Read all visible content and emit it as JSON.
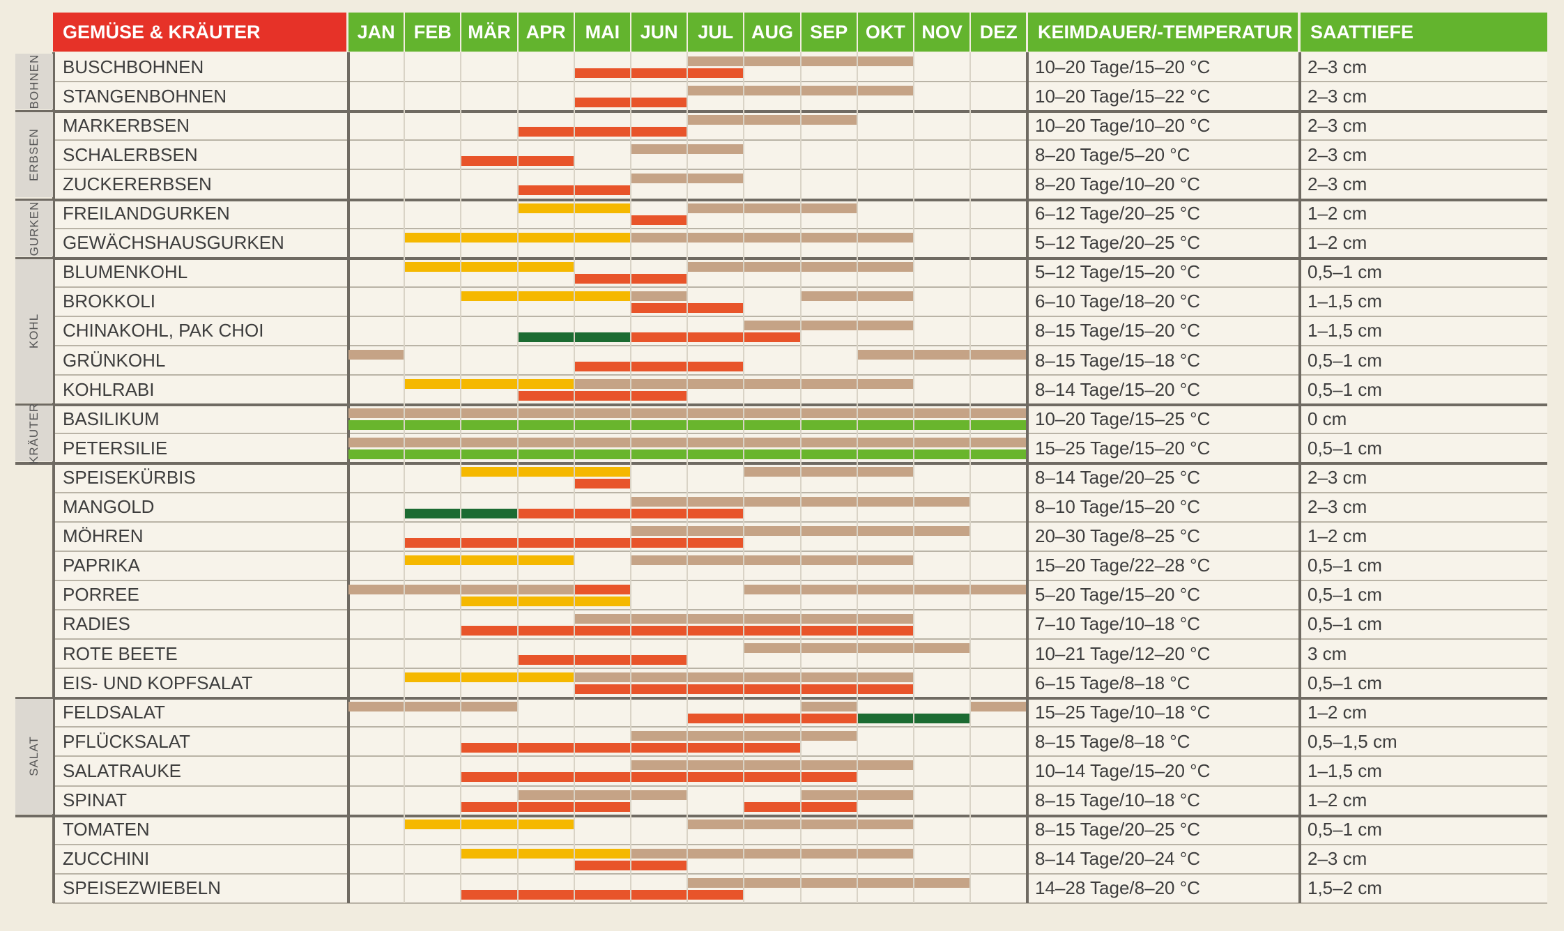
{
  "header": {
    "title": "GEMÜSE & KRÄUTER",
    "months": [
      "JAN",
      "FEB",
      "MÄR",
      "APR",
      "MAI",
      "JUN",
      "JUL",
      "AUG",
      "SEP",
      "OKT",
      "NOV",
      "DEZ"
    ],
    "germination": "KEIMDAUER/-TEMPERATUR",
    "depth": "SAATTIEFE"
  },
  "colors": {
    "header_red": "#e63228",
    "header_green": "#63b42e",
    "red": "#e8542a",
    "tan": "#c5a386",
    "yellow": "#f5b800",
    "dark_green": "#1c6b32",
    "light_green": "#69b52d",
    "group_bg": "#dcd8d1"
  },
  "groups": [
    {
      "label": "BOHNEN",
      "start": 0,
      "end": 1
    },
    {
      "label": "ERBSEN",
      "start": 2,
      "end": 4
    },
    {
      "label": "GURKEN",
      "start": 5,
      "end": 6
    },
    {
      "label": "KOHL",
      "start": 7,
      "end": 11
    },
    {
      "label": "KRÄUTER",
      "start": 12,
      "end": 13
    },
    {
      "label": "",
      "start": 14,
      "end": 21
    },
    {
      "label": "SALAT",
      "start": 22,
      "end": 25
    },
    {
      "label": "",
      "start": 26,
      "end": 29
    }
  ],
  "rows": [
    {
      "name": "BUSCHBOHNEN",
      "germ": "10–20 Tage/15–20 °C",
      "depth": "2–3 cm",
      "bars": [
        {
          "c": "tan",
          "s": 6.0,
          "e": 10.0,
          "h": "top"
        },
        {
          "c": "red",
          "s": 4.0,
          "e": 7.0,
          "h": "bot"
        }
      ]
    },
    {
      "name": "STANGENBOHNEN",
      "germ": "10–20 Tage/15–22 °C",
      "depth": "2–3 cm",
      "bars": [
        {
          "c": "tan",
          "s": 6.0,
          "e": 10.0,
          "h": "top"
        },
        {
          "c": "red",
          "s": 4.0,
          "e": 6.0,
          "h": "bot"
        }
      ]
    },
    {
      "name": "MARKERBSEN",
      "germ": "10–20 Tage/10–20 °C",
      "depth": "2–3 cm",
      "bars": [
        {
          "c": "tan",
          "s": 6.0,
          "e": 9.0,
          "h": "top"
        },
        {
          "c": "red",
          "s": 3.0,
          "e": 6.0,
          "h": "bot"
        }
      ]
    },
    {
      "name": "SCHALERBSEN",
      "germ": "8–20 Tage/5–20 °C",
      "depth": "2–3 cm",
      "bars": [
        {
          "c": "tan",
          "s": 5.0,
          "e": 7.0,
          "h": "top"
        },
        {
          "c": "red",
          "s": 2.0,
          "e": 4.0,
          "h": "bot"
        }
      ]
    },
    {
      "name": "ZUCKERERBSEN",
      "germ": "8–20 Tage/10–20 °C",
      "depth": "2–3 cm",
      "bars": [
        {
          "c": "tan",
          "s": 5.0,
          "e": 7.0,
          "h": "top"
        },
        {
          "c": "red",
          "s": 3.0,
          "e": 5.0,
          "h": "bot"
        }
      ]
    },
    {
      "name": "FREILANDGURKEN",
      "germ": "6–12 Tage/20–25 °C",
      "depth": "1–2 cm",
      "bars": [
        {
          "c": "yellow",
          "s": 3.0,
          "e": 5.0,
          "h": "top"
        },
        {
          "c": "tan",
          "s": 6.0,
          "e": 9.0,
          "h": "top"
        },
        {
          "c": "red",
          "s": 5.0,
          "e": 6.0,
          "h": "bot"
        }
      ]
    },
    {
      "name": "GEWÄCHSHAUSGURKEN",
      "germ": "5–12 Tage/20–25 °C",
      "depth": "1–2 cm",
      "bars": [
        {
          "c": "yellow",
          "s": 1.0,
          "e": 5.0,
          "h": "top"
        },
        {
          "c": "tan",
          "s": 5.0,
          "e": 10.0,
          "h": "top"
        }
      ]
    },
    {
      "name": "BLUMENKOHL",
      "germ": "5–12 Tage/15–20 °C",
      "depth": "0,5–1 cm",
      "bars": [
        {
          "c": "yellow",
          "s": 1.0,
          "e": 4.0,
          "h": "top"
        },
        {
          "c": "tan",
          "s": 6.0,
          "e": 10.0,
          "h": "top"
        },
        {
          "c": "red",
          "s": 4.0,
          "e": 6.0,
          "h": "bot"
        }
      ]
    },
    {
      "name": "BROKKOLI",
      "germ": "6–10 Tage/18–20 °C",
      "depth": "1–1,5 cm",
      "bars": [
        {
          "c": "yellow",
          "s": 2.0,
          "e": 5.0,
          "h": "top"
        },
        {
          "c": "tan",
          "s": 5.0,
          "e": 6.0,
          "h": "top"
        },
        {
          "c": "tan",
          "s": 8.0,
          "e": 10.0,
          "h": "top"
        },
        {
          "c": "red",
          "s": 5.0,
          "e": 7.0,
          "h": "bot"
        }
      ]
    },
    {
      "name": "CHINAKOHL, PAK CHOI",
      "germ": "8–15 Tage/15–20 °C",
      "depth": "1–1,5 cm",
      "bars": [
        {
          "c": "tan",
          "s": 7.0,
          "e": 10.0,
          "h": "top"
        },
        {
          "c": "dark_green",
          "s": 3.0,
          "e": 5.0,
          "h": "bot"
        },
        {
          "c": "red",
          "s": 5.0,
          "e": 8.0,
          "h": "bot"
        }
      ]
    },
    {
      "name": "GRÜNKOHL",
      "germ": "8–15 Tage/15–18 °C",
      "depth": "0,5–1 cm",
      "bars": [
        {
          "c": "tan",
          "s": 0.0,
          "e": 1.0,
          "h": "top"
        },
        {
          "c": "tan",
          "s": 9.0,
          "e": 12.0,
          "h": "top"
        },
        {
          "c": "red",
          "s": 4.0,
          "e": 7.0,
          "h": "bot"
        }
      ]
    },
    {
      "name": "KOHLRABI",
      "germ": "8–14 Tage/15–20 °C",
      "depth": "0,5–1 cm",
      "bars": [
        {
          "c": "yellow",
          "s": 1.0,
          "e": 4.0,
          "h": "top"
        },
        {
          "c": "tan",
          "s": 4.0,
          "e": 10.0,
          "h": "top"
        },
        {
          "c": "red",
          "s": 3.0,
          "e": 6.0,
          "h": "bot"
        }
      ]
    },
    {
      "name": "BASILIKUM",
      "germ": "10–20 Tage/15–25 °C",
      "depth": "0 cm",
      "bars": [
        {
          "c": "tan",
          "s": 0.0,
          "e": 12.0,
          "h": "top"
        },
        {
          "c": "light_green",
          "s": 0.0,
          "e": 12.0,
          "h": "bot"
        }
      ]
    },
    {
      "name": "PETERSILIE",
      "germ": "15–25 Tage/15–20 °C",
      "depth": "0,5–1 cm",
      "bars": [
        {
          "c": "tan",
          "s": 0.0,
          "e": 12.0,
          "h": "top"
        },
        {
          "c": "light_green",
          "s": 0.0,
          "e": 12.0,
          "h": "bot"
        }
      ]
    },
    {
      "name": "SPEISEKÜRBIS",
      "germ": "8–14 Tage/20–25 °C",
      "depth": "2–3 cm",
      "bars": [
        {
          "c": "yellow",
          "s": 2.0,
          "e": 5.0,
          "h": "top"
        },
        {
          "c": "tan",
          "s": 7.0,
          "e": 10.0,
          "h": "top"
        },
        {
          "c": "red",
          "s": 4.0,
          "e": 5.0,
          "h": "bot"
        }
      ]
    },
    {
      "name": "MANGOLD",
      "germ": "8–10 Tage/15–20 °C",
      "depth": "2–3 cm",
      "bars": [
        {
          "c": "tan",
          "s": 5.0,
          "e": 11.0,
          "h": "top"
        },
        {
          "c": "dark_green",
          "s": 1.0,
          "e": 3.0,
          "h": "bot"
        },
        {
          "c": "red",
          "s": 3.0,
          "e": 7.0,
          "h": "bot"
        }
      ]
    },
    {
      "name": "MÖHREN",
      "germ": "20–30 Tage/8–25 °C",
      "depth": "1–2 cm",
      "bars": [
        {
          "c": "tan",
          "s": 5.0,
          "e": 11.0,
          "h": "top"
        },
        {
          "c": "red",
          "s": 1.0,
          "e": 7.0,
          "h": "bot"
        }
      ]
    },
    {
      "name": "PAPRIKA",
      "germ": "15–20 Tage/22–28 °C",
      "depth": "0,5–1 cm",
      "bars": [
        {
          "c": "yellow",
          "s": 1.0,
          "e": 4.0,
          "h": "top"
        },
        {
          "c": "tan",
          "s": 5.0,
          "e": 10.0,
          "h": "top"
        }
      ]
    },
    {
      "name": "PORREE",
      "germ": "5–20 Tage/15–20 °C",
      "depth": "0,5–1 cm",
      "bars": [
        {
          "c": "tan",
          "s": 0.0,
          "e": 4.0,
          "h": "top"
        },
        {
          "c": "red",
          "s": 4.0,
          "e": 5.0,
          "h": "top"
        },
        {
          "c": "tan",
          "s": 7.0,
          "e": 12.0,
          "h": "top"
        },
        {
          "c": "yellow",
          "s": 2.0,
          "e": 5.0,
          "h": "bot"
        }
      ]
    },
    {
      "name": "RADIES",
      "germ": "7–10 Tage/10–18 °C",
      "depth": "0,5–1 cm",
      "bars": [
        {
          "c": "tan",
          "s": 4.0,
          "e": 10.0,
          "h": "top"
        },
        {
          "c": "red",
          "s": 2.0,
          "e": 10.0,
          "h": "bot"
        }
      ]
    },
    {
      "name": "ROTE BEETE",
      "germ": "10–21 Tage/12–20 °C",
      "depth": "3 cm",
      "bars": [
        {
          "c": "tan",
          "s": 7.0,
          "e": 11.0,
          "h": "top"
        },
        {
          "c": "red",
          "s": 3.0,
          "e": 6.0,
          "h": "bot"
        }
      ]
    },
    {
      "name": "EIS- UND KOPFSALAT",
      "germ": "6–15 Tage/8–18 °C",
      "depth": "0,5–1 cm",
      "bars": [
        {
          "c": "yellow",
          "s": 1.0,
          "e": 4.0,
          "h": "top"
        },
        {
          "c": "tan",
          "s": 4.0,
          "e": 10.0,
          "h": "top"
        },
        {
          "c": "red",
          "s": 4.0,
          "e": 10.0,
          "h": "bot"
        }
      ]
    },
    {
      "name": "FELDSALAT",
      "germ": "15–25 Tage/10–18 °C",
      "depth": "1–2 cm",
      "bars": [
        {
          "c": "tan",
          "s": 0.0,
          "e": 3.0,
          "h": "top"
        },
        {
          "c": "tan",
          "s": 8.0,
          "e": 9.0,
          "h": "top"
        },
        {
          "c": "tan",
          "s": 11.0,
          "e": 12.0,
          "h": "top"
        },
        {
          "c": "red",
          "s": 6.0,
          "e": 9.0,
          "h": "bot"
        },
        {
          "c": "dark_green",
          "s": 9.0,
          "e": 11.0,
          "h": "bot"
        }
      ]
    },
    {
      "name": "PFLÜCKSALAT",
      "germ": "8–15 Tage/8–18 °C",
      "depth": "0,5–1,5 cm",
      "bars": [
        {
          "c": "tan",
          "s": 5.0,
          "e": 9.0,
          "h": "top"
        },
        {
          "c": "red",
          "s": 2.0,
          "e": 8.0,
          "h": "bot"
        }
      ]
    },
    {
      "name": "SALATRAUKE",
      "germ": "10–14 Tage/15–20 °C",
      "depth": "1–1,5 cm",
      "bars": [
        {
          "c": "tan",
          "s": 5.0,
          "e": 10.0,
          "h": "top"
        },
        {
          "c": "red",
          "s": 2.0,
          "e": 9.0,
          "h": "bot"
        }
      ]
    },
    {
      "name": "SPINAT",
      "germ": "8–15 Tage/10–18 °C",
      "depth": "1–2 cm",
      "bars": [
        {
          "c": "tan",
          "s": 3.0,
          "e": 6.0,
          "h": "top"
        },
        {
          "c": "tan",
          "s": 8.0,
          "e": 10.0,
          "h": "top"
        },
        {
          "c": "red",
          "s": 2.0,
          "e": 5.0,
          "h": "bot"
        },
        {
          "c": "red",
          "s": 7.0,
          "e": 9.0,
          "h": "bot"
        }
      ]
    },
    {
      "name": "TOMATEN",
      "germ": "8–15 Tage/20–25 °C",
      "depth": "0,5–1 cm",
      "bars": [
        {
          "c": "yellow",
          "s": 1.0,
          "e": 4.0,
          "h": "top"
        },
        {
          "c": "tan",
          "s": 6.0,
          "e": 10.0,
          "h": "top"
        }
      ]
    },
    {
      "name": "ZUCCHINI",
      "germ": "8–14 Tage/20–24 °C",
      "depth": "2–3 cm",
      "bars": [
        {
          "c": "yellow",
          "s": 2.0,
          "e": 5.0,
          "h": "top"
        },
        {
          "c": "tan",
          "s": 5.0,
          "e": 10.0,
          "h": "top"
        },
        {
          "c": "red",
          "s": 4.0,
          "e": 6.0,
          "h": "bot"
        }
      ]
    },
    {
      "name": "SPEISEZWIEBELN",
      "germ": "14–28 Tage/8–20 °C",
      "depth": "1,5–2 cm",
      "bars": [
        {
          "c": "tan",
          "s": 6.0,
          "e": 11.0,
          "h": "top"
        },
        {
          "c": "red",
          "s": 2.0,
          "e": 7.0,
          "h": "bot"
        }
      ]
    }
  ]
}
